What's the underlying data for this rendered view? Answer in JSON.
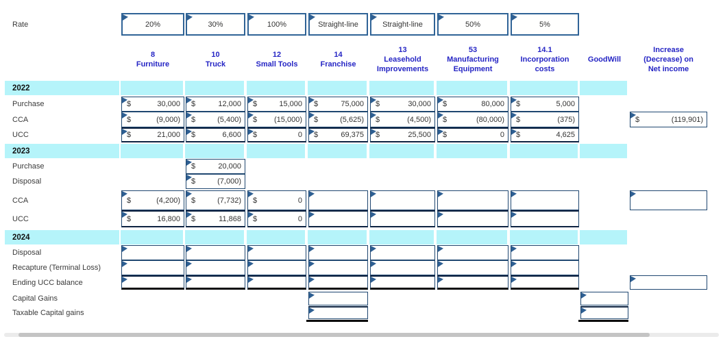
{
  "colors": {
    "band": "#b5f4fa",
    "header_text": "#2525c4",
    "cell_border": "#1e466f",
    "heavy_border": "#0d2240",
    "black_line": "#0a0a0a",
    "rate_border": "#2f6396",
    "marker": "#2e5f92",
    "text": "#333333",
    "label_text": "#3a3a3a",
    "year_text": "#111111",
    "scroll_track": "#ebebeb",
    "scroll_thumb": "#c4c4c4"
  },
  "table": {
    "rate_label": "Rate",
    "rate_values": [
      {
        "col": "furniture",
        "text": "20%"
      },
      {
        "col": "truck",
        "text": "30%"
      },
      {
        "col": "small_tools",
        "text": "100%"
      },
      {
        "col": "franchise",
        "text": "Straight-line"
      },
      {
        "col": "leasehold",
        "text": "Straight-line"
      },
      {
        "col": "manufacturing",
        "text": "50%"
      },
      {
        "col": "incorporation",
        "text": "5%"
      }
    ],
    "columns": [
      {
        "id": "furniture",
        "header": "8\nFurniture"
      },
      {
        "id": "truck",
        "header": "10\nTruck"
      },
      {
        "id": "small_tools",
        "header": "12\nSmall Tools"
      },
      {
        "id": "franchise",
        "header": "14\nFranchise"
      },
      {
        "id": "leasehold",
        "header": "13\nLeasehold\nImprovements"
      },
      {
        "id": "manufacturing",
        "header": "53\nManufacturing\nEquipment"
      },
      {
        "id": "incorporation",
        "header": "14.1\nIncorporation\ncosts"
      },
      {
        "id": "goodwill",
        "header": "GoodWill"
      },
      {
        "id": "increase",
        "header": "Increase\n(Decrease) on\nNet income"
      }
    ],
    "currency_symbol": "$",
    "sections": [
      {
        "year": "2022",
        "rows": [
          {
            "label": "Purchase",
            "cells": [
              {
                "col": "furniture",
                "v": "30,000"
              },
              {
                "col": "truck",
                "v": "12,000"
              },
              {
                "col": "small_tools",
                "v": "15,000"
              },
              {
                "col": "franchise",
                "v": "75,000"
              },
              {
                "col": "leasehold",
                "v": "30,000"
              },
              {
                "col": "manufacturing",
                "v": "80,000"
              },
              {
                "col": "incorporation",
                "v": "5,000"
              }
            ]
          },
          {
            "label": "CCA",
            "cells": [
              {
                "col": "furniture",
                "v": "(9,000)"
              },
              {
                "col": "truck",
                "v": "(5,400)"
              },
              {
                "col": "small_tools",
                "v": "(15,000)"
              },
              {
                "col": "franchise",
                "v": "(5,625)"
              },
              {
                "col": "leasehold",
                "v": "(4,500)"
              },
              {
                "col": "manufacturing",
                "v": "(80,000)"
              },
              {
                "col": "incorporation",
                "v": "(375)"
              },
              {
                "col": "increase",
                "v": "(119,901)"
              }
            ]
          },
          {
            "label": "UCC",
            "cells": [
              {
                "col": "furniture",
                "v": "21,000"
              },
              {
                "col": "truck",
                "v": "6,600"
              },
              {
                "col": "small_tools",
                "v": "0"
              },
              {
                "col": "franchise",
                "v": "69,375"
              },
              {
                "col": "leasehold",
                "v": "25,500"
              },
              {
                "col": "manufacturing",
                "v": "0"
              },
              {
                "col": "incorporation",
                "v": "4,625"
              }
            ]
          }
        ]
      },
      {
        "year": "2023",
        "rows": [
          {
            "label": "Purchase",
            "cells": [
              {
                "col": "truck",
                "v": "20,000"
              }
            ]
          },
          {
            "label": "Disposal",
            "cells": [
              {
                "col": "truck",
                "v": "(7,000)"
              }
            ]
          },
          {
            "label": "CCA",
            "cells": [
              {
                "col": "furniture",
                "v": "(4,200)"
              },
              {
                "col": "truck",
                "v": "(7,732)"
              },
              {
                "col": "small_tools",
                "v": "0"
              },
              {
                "col": "franchise"
              },
              {
                "col": "leasehold"
              },
              {
                "col": "manufacturing"
              },
              {
                "col": "incorporation"
              },
              {
                "col": "increase"
              }
            ]
          },
          {
            "label": "UCC",
            "cells": [
              {
                "col": "furniture",
                "v": "16,800"
              },
              {
                "col": "truck",
                "v": "11,868"
              },
              {
                "col": "small_tools",
                "v": "0"
              },
              {
                "col": "franchise"
              },
              {
                "col": "leasehold"
              },
              {
                "col": "manufacturing"
              },
              {
                "col": "incorporation"
              }
            ]
          }
        ]
      },
      {
        "year": "2024",
        "rows": [
          {
            "label": "Disposal",
            "cells": [
              {
                "col": "furniture"
              },
              {
                "col": "truck"
              },
              {
                "col": "small_tools"
              },
              {
                "col": "franchise"
              },
              {
                "col": "leasehold"
              },
              {
                "col": "manufacturing"
              },
              {
                "col": "incorporation"
              }
            ]
          },
          {
            "label": "Recapture (Terminal Loss)",
            "cells": [
              {
                "col": "furniture"
              },
              {
                "col": "truck"
              },
              {
                "col": "small_tools"
              },
              {
                "col": "franchise"
              },
              {
                "col": "leasehold"
              },
              {
                "col": "manufacturing"
              },
              {
                "col": "incorporation"
              }
            ]
          },
          {
            "label": "Ending UCC balance",
            "cells": [
              {
                "col": "furniture"
              },
              {
                "col": "truck"
              },
              {
                "col": "small_tools"
              },
              {
                "col": "franchise"
              },
              {
                "col": "leasehold"
              },
              {
                "col": "manufacturing"
              },
              {
                "col": "incorporation"
              },
              {
                "col": "increase"
              }
            ]
          },
          {
            "label": "Capital Gains",
            "cells": [
              {
                "col": "franchise"
              },
              {
                "col": "goodwill"
              }
            ]
          },
          {
            "label": "Taxable Capital gains",
            "cells": [
              {
                "col": "franchise"
              },
              {
                "col": "goodwill"
              }
            ]
          }
        ]
      }
    ]
  }
}
